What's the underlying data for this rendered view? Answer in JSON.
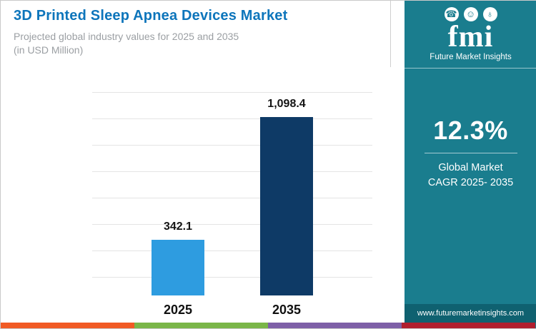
{
  "header": {
    "title": "3D Printed Sleep Apnea Devices Market",
    "subtitle_line1": "Projected global industry values for 2025 and 2035",
    "subtitle_line2": "(in USD Million)"
  },
  "sidebar": {
    "logo_text": "fmi",
    "logo_name": "Future Market Insights",
    "cagr_value": "12.3%",
    "cagr_label_line1": "Global Market",
    "cagr_label_line2": "CAGR 2025- 2035",
    "website": "www.futuremarketinsights.com"
  },
  "chart_data": {
    "type": "bar",
    "title": "3D Printed Sleep Apnea Devices Market",
    "subtitle": "Projected global industry values for 2025 and 2035 (in USD Million)",
    "categories": [
      "2025",
      "2035"
    ],
    "values": [
      342.1,
      1098.4
    ],
    "value_labels": [
      "342.1",
      "1,098.4"
    ],
    "bar_colors": [
      "#2e9ce0",
      "#0e3a66"
    ],
    "xlabel": "",
    "ylabel": "",
    "ylim": [
      0,
      1250
    ],
    "grid": true,
    "legend": false
  },
  "footer_strip_colors": [
    "#f15a24",
    "#7ab648",
    "#7e5fa7",
    "#b01e2e"
  ]
}
